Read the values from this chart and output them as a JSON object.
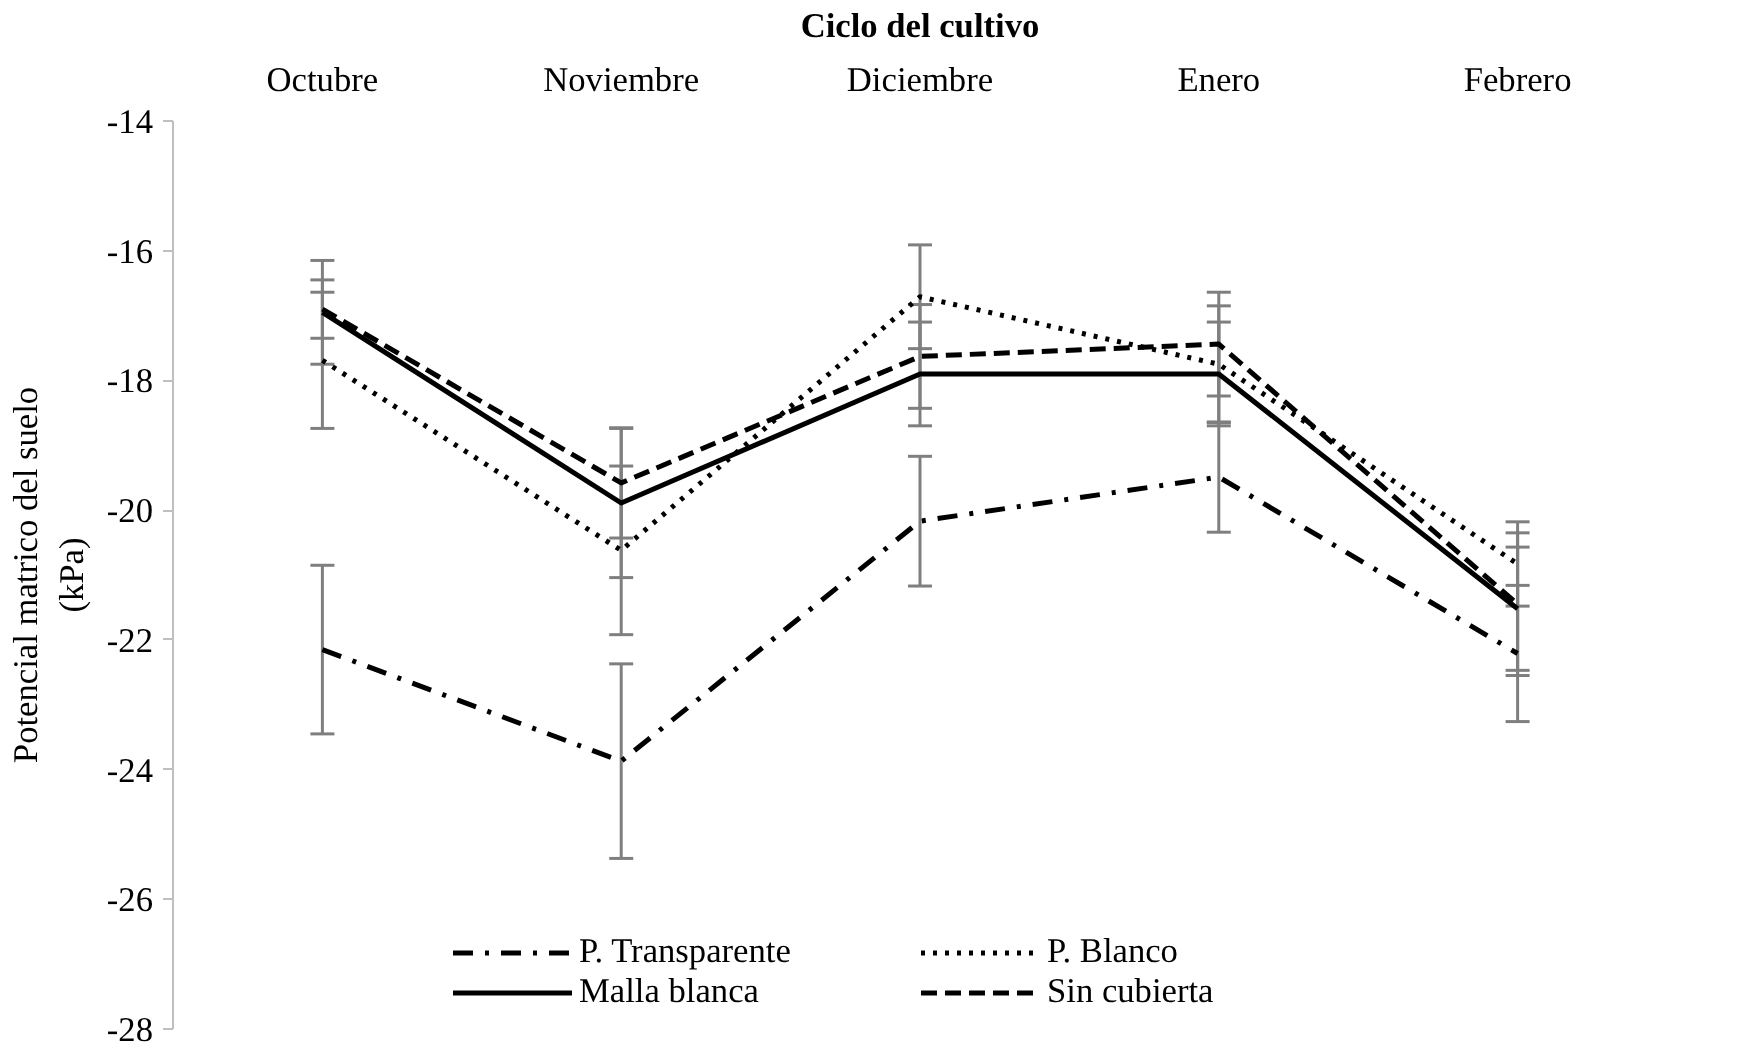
{
  "chart_data": {
    "type": "line",
    "xlabel": "Ciclo del cultivo",
    "ylabel": "Potencial matrico del suelo\n(kPa)",
    "categories": [
      "Octubre",
      "Noviembre",
      "Diciembre",
      "Enero",
      "Febrero"
    ],
    "series": [
      {
        "name": "P. Transparente",
        "color": "#000000",
        "line_style": "dashdot",
        "values": [
          -22.15,
          -23.87,
          -20.17,
          -19.49,
          -22.21
        ],
        "errors": [
          1.3,
          1.5,
          1.0,
          0.85,
          1.05
        ]
      },
      {
        "name": "P. Blanco",
        "color": "#000000",
        "line_style": "dotted",
        "values": [
          -17.69,
          -20.62,
          -16.71,
          -17.75,
          -20.83
        ],
        "errors": [
          1.05,
          1.3,
          0.8,
          0.9,
          0.65
        ]
      },
      {
        "name": "Malla blanca",
        "color": "#000000",
        "line_style": "solid",
        "values": [
          -16.95,
          -19.89,
          -17.9,
          -17.9,
          -21.52
        ],
        "errors": [
          0.8,
          1.15,
          0.8,
          0.8,
          0.95
        ]
      },
      {
        "name": "Sin cubierta",
        "color": "#000000",
        "line_style": "dashed",
        "values": [
          -16.9,
          -19.58,
          -17.63,
          -17.44,
          -21.45
        ],
        "errors": [
          0.45,
          0.85,
          0.8,
          0.8,
          1.1
        ]
      }
    ],
    "ylim": [
      -28,
      -14
    ],
    "yticks": [
      -28,
      -26,
      -24,
      -22,
      -20,
      -18,
      -16,
      -14
    ],
    "grid": false,
    "legend": "bottom",
    "marker": "none"
  }
}
